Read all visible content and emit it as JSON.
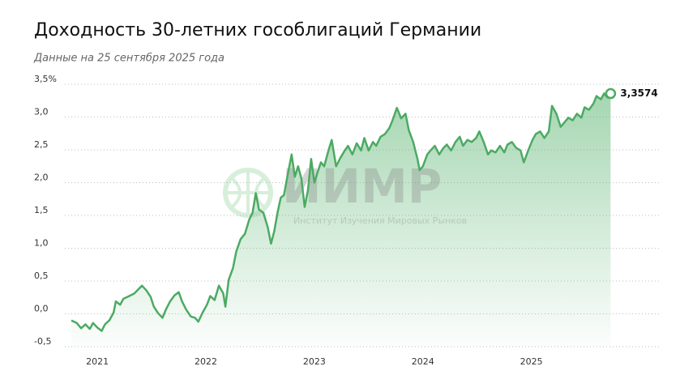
{
  "chart_data": {
    "type": "area-line",
    "title": "Доходность 30-летних гособлигаций Германии",
    "subtitle": "Данные на 25 сентября 2025 года",
    "watermark": {
      "title": "ИИМР",
      "subtitle": "Институт Изучения Мировых Рынков"
    },
    "color": "#4caa63",
    "grid": true,
    "xlim": [
      2020.7,
      2026.19
    ],
    "xticks": [
      2021,
      2022,
      2023,
      2024,
      2025
    ],
    "ylim": [
      -0.5,
      3.5
    ],
    "yticks": [
      {
        "value": -0.5,
        "label": "-0,5"
      },
      {
        "value": 0,
        "label": "0,0"
      },
      {
        "value": 0.5,
        "label": "0,5"
      },
      {
        "value": 1,
        "label": "1,0"
      },
      {
        "value": 1.5,
        "label": "1,5"
      },
      {
        "value": 2,
        "label": "2,0"
      },
      {
        "value": 2.5,
        "label": "2,5"
      },
      {
        "value": 3,
        "label": "3,0"
      },
      {
        "value": 3.5,
        "label": "3,5%"
      }
    ],
    "x": [
      2020.76,
      2020.81,
      2020.85,
      2020.89,
      2020.93,
      2020.96,
      2021.0,
      2021.04,
      2021.07,
      2021.11,
      2021.15,
      2021.17,
      2021.21,
      2021.24,
      2021.28,
      2021.34,
      2021.37,
      2021.41,
      2021.45,
      2021.49,
      2021.52,
      2021.56,
      2021.6,
      2021.63,
      2021.67,
      2021.71,
      2021.75,
      2021.78,
      2021.82,
      2021.86,
      2021.9,
      2021.93,
      2021.97,
      2022.01,
      2022.04,
      2022.08,
      2022.12,
      2022.16,
      2022.18,
      2022.21,
      2022.25,
      2022.28,
      2022.32,
      2022.36,
      2022.4,
      2022.43,
      2022.46,
      2022.49,
      2022.53,
      2022.57,
      2022.6,
      2022.63,
      2022.66,
      2022.69,
      2022.72,
      2022.75,
      2022.79,
      2022.82,
      2022.85,
      2022.88,
      2022.91,
      2022.94,
      2022.97,
      2023.0,
      2023.03,
      2023.06,
      2023.09,
      2023.13,
      2023.16,
      2023.2,
      2023.24,
      2023.28,
      2023.31,
      2023.35,
      2023.39,
      2023.43,
      2023.46,
      2023.5,
      2023.54,
      2023.57,
      2023.61,
      2023.65,
      2023.69,
      2023.72,
      2023.76,
      2023.8,
      2023.84,
      2023.87,
      2023.91,
      2023.95,
      2023.97,
      2024.0,
      2024.04,
      2024.07,
      2024.11,
      2024.15,
      2024.19,
      2024.22,
      2024.26,
      2024.3,
      2024.34,
      2024.37,
      2024.41,
      2024.45,
      2024.49,
      2024.52,
      2024.56,
      2024.6,
      2024.63,
      2024.67,
      2024.71,
      2024.75,
      2024.78,
      2024.82,
      2024.86,
      2024.9,
      2024.93,
      2024.97,
      2025.01,
      2025.04,
      2025.08,
      2025.12,
      2025.16,
      2025.19,
      2025.23,
      2025.27,
      2025.31,
      2025.34,
      2025.38,
      2025.42,
      2025.46,
      2025.49,
      2025.53,
      2025.57,
      2025.6,
      2025.64,
      2025.67,
      2025.7,
      2025.73
    ],
    "values": [
      -0.1,
      -0.14,
      -0.22,
      -0.16,
      -0.23,
      -0.14,
      -0.21,
      -0.26,
      -0.16,
      -0.1,
      0.02,
      0.19,
      0.14,
      0.23,
      0.26,
      0.31,
      0.36,
      0.43,
      0.36,
      0.26,
      0.11,
      0.01,
      -0.06,
      0.06,
      0.19,
      0.28,
      0.33,
      0.19,
      0.06,
      -0.04,
      -0.06,
      -0.12,
      0.02,
      0.14,
      0.27,
      0.21,
      0.43,
      0.31,
      0.11,
      0.52,
      0.7,
      0.95,
      1.14,
      1.22,
      1.44,
      1.54,
      1.84,
      1.59,
      1.54,
      1.32,
      1.07,
      1.26,
      1.54,
      1.77,
      1.81,
      2.09,
      2.43,
      2.09,
      2.25,
      2.06,
      1.63,
      1.88,
      2.36,
      2.0,
      2.16,
      2.31,
      2.25,
      2.49,
      2.65,
      2.25,
      2.38,
      2.49,
      2.56,
      2.43,
      2.6,
      2.49,
      2.68,
      2.49,
      2.62,
      2.56,
      2.7,
      2.74,
      2.83,
      2.95,
      3.14,
      2.98,
      3.05,
      2.8,
      2.62,
      2.36,
      2.19,
      2.25,
      2.43,
      2.49,
      2.56,
      2.43,
      2.53,
      2.58,
      2.49,
      2.62,
      2.7,
      2.56,
      2.65,
      2.62,
      2.68,
      2.78,
      2.62,
      2.43,
      2.49,
      2.46,
      2.56,
      2.46,
      2.58,
      2.62,
      2.53,
      2.49,
      2.31,
      2.49,
      2.65,
      2.74,
      2.78,
      2.68,
      2.78,
      3.17,
      3.05,
      2.85,
      2.93,
      2.99,
      2.95,
      3.05,
      2.99,
      3.15,
      3.11,
      3.2,
      3.32,
      3.27,
      3.36,
      3.3,
      3.3574
    ],
    "last_label": "3,3574"
  }
}
